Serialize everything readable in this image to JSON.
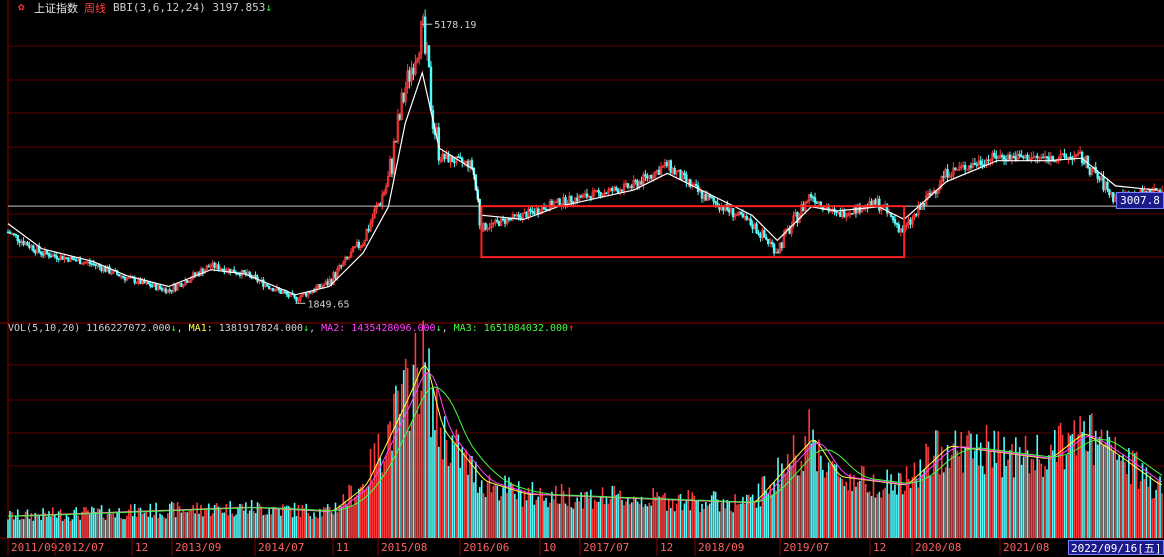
{
  "header": {
    "index_name": "上证指数",
    "period": "周线",
    "indicator": "BBI(3,6,12,24)",
    "indicator_value": "3197.853",
    "indicator_arrow": "↓"
  },
  "volume_header": {
    "label": "VOL(5,10,20)",
    "vol_value": "1166227072.000",
    "vol_arrow": "↓",
    "ma1_label": "MA1:",
    "ma1_value": "1381917824.000",
    "ma1_arrow": "↓",
    "ma2_label": "MA2:",
    "ma2_value": "1435428096.000",
    "ma2_arrow": "↓",
    "ma3_label": "MA3:",
    "ma3_value": "1651084032.000",
    "ma3_arrow": "↑"
  },
  "current_price_tag": "3007.8",
  "current_date_tag": "2022/09/16",
  "current_weekday_tag": "五",
  "icons": {
    "title_icon": "star-icon"
  },
  "colors": {
    "up": "#ff3b3b",
    "down": "#54fcfc",
    "bbi_line": "#ffffff",
    "ma1": "#ffff40",
    "ma2": "#ff40ff",
    "ma3": "#40ff40",
    "grid": "#5a0000",
    "highlight_box": "#ff2020"
  },
  "chart_data": {
    "type": "candlestick",
    "title": "上证指数 周线",
    "price_axis_range": [
      1650,
      5300
    ],
    "annotations": [
      {
        "label": "5178.19",
        "x": "2015/06",
        "y": 5178.19
      },
      {
        "label": "1849.65",
        "x": "2014/03",
        "y": 1849.65
      }
    ],
    "reference_line": 3007.8,
    "highlight_box": {
      "x_start": "2016/01",
      "x_end": "2020/03",
      "y_low": 2400,
      "y_high": 3007.8
    },
    "x_tick_labels": [
      "2011/09",
      "2012/07",
      "12",
      "2013/09",
      "2014/07",
      "11",
      "2015/08",
      "2016/06",
      "10",
      "2017/07",
      "12",
      "2018/09",
      "2019/07",
      "12",
      "2020/08",
      "2021/08"
    ],
    "price_series": {
      "name": "close",
      "x": [
        "2011/05",
        "2011/09",
        "2012/03",
        "2012/07",
        "2012/12",
        "2013/05",
        "2013/09",
        "2014/03",
        "2014/07",
        "2014/11",
        "2015/02",
        "2015/04",
        "2015/06",
        "2015/08",
        "2015/12",
        "2016/01",
        "2016/06",
        "2016/10",
        "2017/07",
        "2017/11",
        "2018/03",
        "2018/09",
        "2018/12",
        "2019/04",
        "2019/07",
        "2019/12",
        "2020/03",
        "2020/08",
        "2021/02",
        "2021/08",
        "2021/12",
        "2022/04",
        "2022/09"
      ],
      "values": [
        2700,
        2450,
        2320,
        2150,
        2000,
        2300,
        2200,
        1900,
        2100,
        2600,
        3300,
        4400,
        5100,
        3600,
        3500,
        2750,
        2900,
        3050,
        3250,
        3500,
        3150,
        2800,
        2480,
        3150,
        2900,
        3050,
        2700,
        3400,
        3600,
        3580,
        3600,
        3100,
        3200
      ]
    },
    "bbi_series": {
      "name": "BBI",
      "x": [
        "2011/05",
        "2011/09",
        "2012/03",
        "2012/07",
        "2012/12",
        "2013/05",
        "2013/09",
        "2014/03",
        "2014/07",
        "2014/11",
        "2015/02",
        "2015/04",
        "2015/06",
        "2015/08",
        "2015/12",
        "2016/01",
        "2016/06",
        "2016/10",
        "2017/07",
        "2017/11",
        "2018/03",
        "2018/09",
        "2018/12",
        "2019/04",
        "2019/07",
        "2019/12",
        "2020/03",
        "2020/08",
        "2021/02",
        "2021/08",
        "2021/12",
        "2022/04",
        "2022/09"
      ],
      "values": [
        2800,
        2500,
        2350,
        2180,
        2050,
        2250,
        2200,
        1950,
        2050,
        2450,
        3000,
        4000,
        4600,
        3700,
        3450,
        2900,
        2850,
        3000,
        3200,
        3400,
        3200,
        2900,
        2600,
        3000,
        2950,
        3000,
        2850,
        3300,
        3550,
        3550,
        3580,
        3250,
        3197.853
      ]
    },
    "volume_series": {
      "name": "VOL",
      "x": [
        "2011/05",
        "2012/07",
        "2013/09",
        "2014/07",
        "2014/11",
        "2015/04",
        "2015/06",
        "2015/08",
        "2016/01",
        "2016/06",
        "2017/07",
        "2018/09",
        "2019/04",
        "2019/07",
        "2020/03",
        "2020/08",
        "2021/08",
        "2021/12",
        "2022/04",
        "2022/09"
      ],
      "values": [
        0.5,
        0.6,
        0.7,
        0.6,
        1.2,
        3.2,
        4.1,
        2.5,
        1.3,
        1.0,
        0.9,
        0.8,
        2.3,
        1.4,
        1.2,
        2.1,
        1.8,
        2.4,
        1.9,
        1.2
      ]
    }
  }
}
